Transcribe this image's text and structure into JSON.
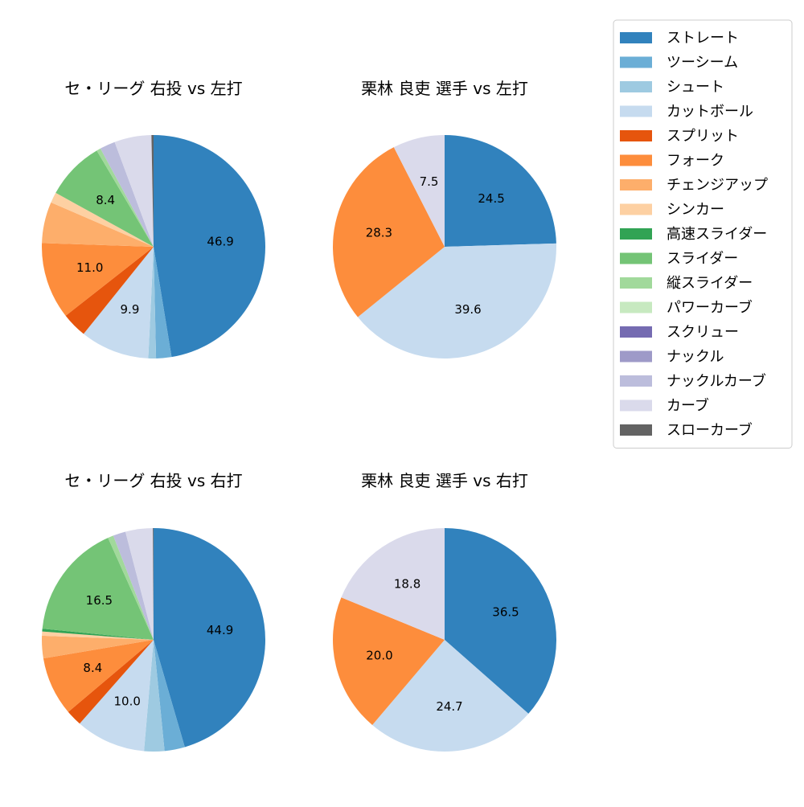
{
  "legend": {
    "placement": "upper-right",
    "items": [
      {
        "label": "ストレート",
        "color": "#3182bd"
      },
      {
        "label": "ツーシーム",
        "color": "#6baed6"
      },
      {
        "label": "シュート",
        "color": "#9ecae1"
      },
      {
        "label": "カットボール",
        "color": "#c6dbef"
      },
      {
        "label": "スプリット",
        "color": "#e6550d"
      },
      {
        "label": "フォーク",
        "color": "#fd8d3c"
      },
      {
        "label": "チェンジアップ",
        "color": "#fdae6b"
      },
      {
        "label": "シンカー",
        "color": "#fdd0a2"
      },
      {
        "label": "高速スライダー",
        "color": "#31a354"
      },
      {
        "label": "スライダー",
        "color": "#74c476"
      },
      {
        "label": "縦スライダー",
        "color": "#a1d99b"
      },
      {
        "label": "パワーカーブ",
        "color": "#c7e9c0"
      },
      {
        "label": "スクリュー",
        "color": "#756bb1"
      },
      {
        "label": "ナックル",
        "color": "#9e9ac8"
      },
      {
        "label": "ナックルカーブ",
        "color": "#bcbddc"
      },
      {
        "label": "カーブ",
        "color": "#dadaeb"
      },
      {
        "label": "スローカーブ",
        "color": "#636363"
      }
    ]
  },
  "chart_data": [
    {
      "type": "pie",
      "title": "セ・リーグ 右投 vs 左打",
      "slices": [
        {
          "label": "ストレート",
          "value": 46.9,
          "shown": "46.9"
        },
        {
          "label": "ツーシーム",
          "value": 2.2
        },
        {
          "label": "シュート",
          "value": 1.1
        },
        {
          "label": "カットボール",
          "value": 9.9,
          "shown": "9.9"
        },
        {
          "label": "スプリット",
          "value": 3.6
        },
        {
          "label": "フォーク",
          "value": 11.0,
          "shown": "11.0"
        },
        {
          "label": "チェンジアップ",
          "value": 5.9
        },
        {
          "label": "シンカー",
          "value": 1.5
        },
        {
          "label": "スライダー",
          "value": 8.4,
          "shown": "8.4"
        },
        {
          "label": "縦スライダー",
          "value": 0.6
        },
        {
          "label": "ナックルカーブ",
          "value": 2.2
        },
        {
          "label": "カーブ",
          "value": 5.3
        },
        {
          "label": "スローカーブ",
          "value": 0.3
        }
      ]
    },
    {
      "type": "pie",
      "title": "栗林 良吏 選手 vs 左打",
      "slices": [
        {
          "label": "ストレート",
          "value": 24.5,
          "shown": "24.5"
        },
        {
          "label": "カットボール",
          "value": 39.6,
          "shown": "39.6"
        },
        {
          "label": "フォーク",
          "value": 28.3,
          "shown": "28.3"
        },
        {
          "label": "カーブ",
          "value": 7.5,
          "shown": "7.5"
        }
      ]
    },
    {
      "type": "pie",
      "title": "セ・リーグ 右投 vs 右打",
      "slices": [
        {
          "label": "ストレート",
          "value": 44.9,
          "shown": "44.9"
        },
        {
          "label": "ツーシーム",
          "value": 2.9
        },
        {
          "label": "シュート",
          "value": 2.9
        },
        {
          "label": "カットボール",
          "value": 10.0,
          "shown": "10.0"
        },
        {
          "label": "スプリット",
          "value": 2.3
        },
        {
          "label": "フォーク",
          "value": 8.4,
          "shown": "8.4"
        },
        {
          "label": "チェンジアップ",
          "value": 3.2
        },
        {
          "label": "シンカー",
          "value": 0.6
        },
        {
          "label": "高速スライダー",
          "value": 0.4
        },
        {
          "label": "スライダー",
          "value": 16.5,
          "shown": "16.5"
        },
        {
          "label": "縦スライダー",
          "value": 0.8
        },
        {
          "label": "ナックルカーブ",
          "value": 1.8
        },
        {
          "label": "カーブ",
          "value": 3.9
        },
        {
          "label": "スローカーブ",
          "value": 0.1
        }
      ]
    },
    {
      "type": "pie",
      "title": "栗林 良吏 選手 vs 右打",
      "slices": [
        {
          "label": "ストレート",
          "value": 36.5,
          "shown": "36.5"
        },
        {
          "label": "カットボール",
          "value": 24.7,
          "shown": "24.7"
        },
        {
          "label": "フォーク",
          "value": 20.0,
          "shown": "20.0"
        },
        {
          "label": "カーブ",
          "value": 18.8,
          "shown": "18.8"
        }
      ]
    }
  ]
}
